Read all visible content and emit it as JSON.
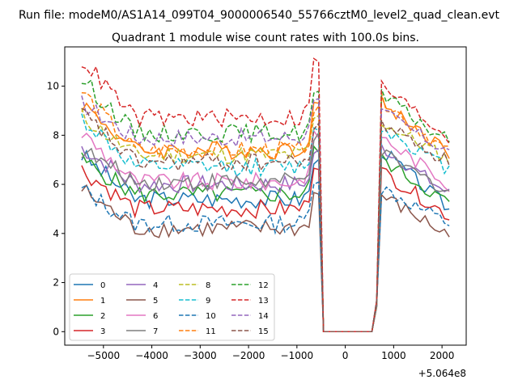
{
  "chart_data": {
    "type": "line",
    "suptitle": "Run file: modeM0/AS1A14_099T04_9000006540_55766cztM0_level2_quad_clean.evt",
    "title": "Quadrant 1 module wise count rates with 100.0s bins.",
    "xlabel": "",
    "ylabel": "",
    "x_offset_label": "+5.064e8",
    "xlim": [
      -5800,
      2500
    ],
    "ylim": [
      -0.55,
      11.6
    ],
    "xticks": [
      -5000,
      -4000,
      -3000,
      -2000,
      -1000,
      0,
      1000,
      2000
    ],
    "xtick_labels": [
      "−5000",
      "−4000",
      "−3000",
      "−2000",
      "−1000",
      "0",
      "1000",
      "2000"
    ],
    "yticks": [
      0,
      2,
      4,
      6,
      8,
      10
    ],
    "ytick_labels": [
      "0",
      "2",
      "4",
      "6",
      "8",
      "10"
    ],
    "gap": {
      "start": -480,
      "end": 560
    },
    "legend_position": "lower-left",
    "series": [
      {
        "name": "0",
        "color": "#1f77b4",
        "dash": "solid",
        "start": 7.2,
        "level": 5.4,
        "pre_gap": 5.9,
        "post_start": 7.5,
        "post_end": 5.0
      },
      {
        "name": "1",
        "color": "#ff7f0e",
        "dash": "solid",
        "start": 9.3,
        "level": 7.4,
        "pre_gap": 8.3,
        "post_start": 9.4,
        "post_end": 7.3
      },
      {
        "name": "2",
        "color": "#2ca02c",
        "dash": "solid",
        "start": 7.0,
        "level": 5.6,
        "pre_gap": 6.4,
        "post_start": 7.1,
        "post_end": 5.2
      },
      {
        "name": "3",
        "color": "#d62728",
        "dash": "solid",
        "start": 6.6,
        "level": 5.0,
        "pre_gap": 5.8,
        "post_start": 6.6,
        "post_end": 4.7
      },
      {
        "name": "4",
        "color": "#9467bd",
        "dash": "solid",
        "start": 7.5,
        "level": 6.0,
        "pre_gap": 6.3,
        "post_start": 7.6,
        "post_end": 5.6
      },
      {
        "name": "5",
        "color": "#8c564b",
        "dash": "solid",
        "start": 5.8,
        "level": 4.2,
        "pre_gap": 4.6,
        "post_start": 5.6,
        "post_end": 3.9
      },
      {
        "name": "6",
        "color": "#e377c2",
        "dash": "solid",
        "start": 8.1,
        "level": 6.1,
        "pre_gap": 7.0,
        "post_start": 8.0,
        "post_end": 6.0
      },
      {
        "name": "7",
        "color": "#7f7f7f",
        "dash": "solid",
        "start": 7.4,
        "level": 6.1,
        "pre_gap": 6.9,
        "post_start": 7.3,
        "post_end": 5.7
      },
      {
        "name": "8",
        "color": "#bcbd22",
        "dash": "dashed",
        "start": 8.8,
        "level": 7.2,
        "pre_gap": 7.7,
        "post_start": 8.6,
        "post_end": 7.0
      },
      {
        "name": "9",
        "color": "#17becf",
        "dash": "dashed",
        "start": 8.7,
        "level": 6.7,
        "pre_gap": 7.2,
        "post_start": 8.4,
        "post_end": 6.6
      },
      {
        "name": "10",
        "color": "#1f77b4",
        "dash": "dashed",
        "start": 5.8,
        "level": 4.4,
        "pre_gap": 5.2,
        "post_start": 5.9,
        "post_end": 4.4
      },
      {
        "name": "11",
        "color": "#ff7f0e",
        "dash": "dashed",
        "start": 9.8,
        "level": 7.4,
        "pre_gap": 8.0,
        "post_start": 9.5,
        "post_end": 7.3
      },
      {
        "name": "12",
        "color": "#2ca02c",
        "dash": "dashed",
        "start": 10.3,
        "level": 8.1,
        "pre_gap": 8.7,
        "post_start": 9.7,
        "post_end": 7.7
      },
      {
        "name": "13",
        "color": "#d62728",
        "dash": "dashed",
        "start": 11.1,
        "level": 8.7,
        "pre_gap": 10.0,
        "post_start": 10.1,
        "post_end": 7.9
      },
      {
        "name": "14",
        "color": "#9467bd",
        "dash": "dashed",
        "start": 9.3,
        "level": 7.9,
        "pre_gap": 8.6,
        "post_start": 9.0,
        "post_end": 7.3
      },
      {
        "name": "15",
        "color": "#8c564b",
        "dash": "dashed",
        "start": 8.9,
        "level": 6.9,
        "pre_gap": 7.3,
        "post_start": 8.6,
        "post_end": 6.9
      }
    ]
  }
}
